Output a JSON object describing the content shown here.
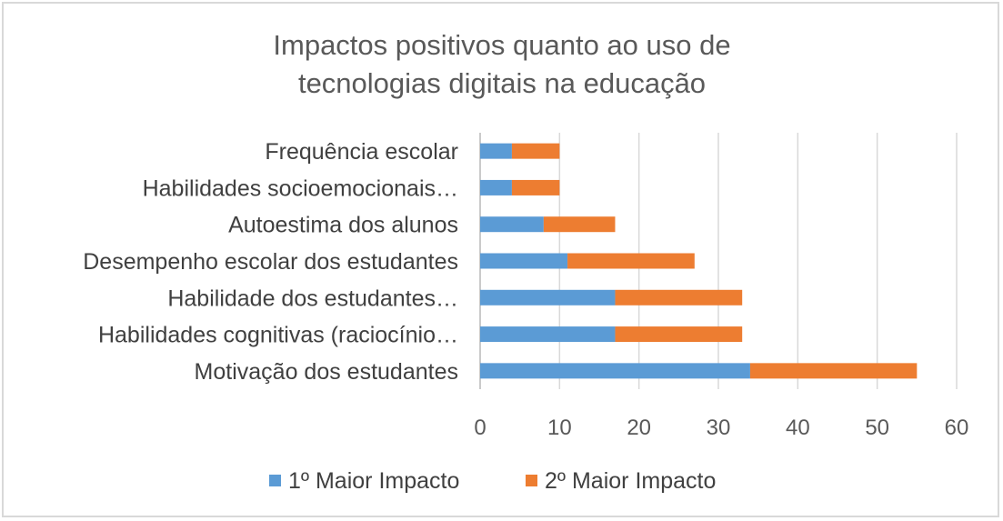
{
  "chart_data": {
    "type": "bar",
    "orientation": "horizontal",
    "stacked": true,
    "title_lines": [
      "Impactos positivos quanto ao uso de",
      "tecnologias digitais na educação"
    ],
    "categories": [
      "Frequência escolar",
      "Habilidades socioemocionais…",
      "Autoestima dos alunos",
      "Desempenho escolar dos estudantes",
      "Habilidade dos estudantes…",
      "Habilidades cognitivas (raciocínio…",
      "Motivação dos estudantes"
    ],
    "series": [
      {
        "name": "1º Maior Impacto",
        "color": "#5b9bd5",
        "values": [
          4,
          4,
          8,
          11,
          17,
          17,
          34
        ]
      },
      {
        "name": "2º Maior Impacto",
        "color": "#ed7d31",
        "values": [
          6,
          6,
          9,
          16,
          16,
          16,
          21
        ]
      }
    ],
    "xlim": [
      0,
      60
    ],
    "xticks": [
      0,
      10,
      20,
      30,
      40,
      50,
      60
    ],
    "grid": true,
    "legend_position": "bottom"
  }
}
